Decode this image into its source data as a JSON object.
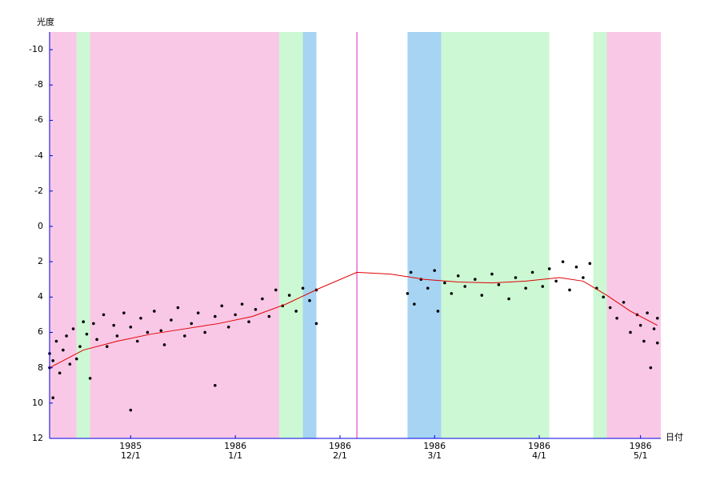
{
  "chart_data": {
    "type": "scatter",
    "y_label": "光度",
    "x_label": "日付",
    "xlim": [
      "1985-11-07",
      "1986-05-07"
    ],
    "xticks": [
      {
        "value": "1985-12-01",
        "label": "1985\n12/1"
      },
      {
        "value": "1986-01-01",
        "label": "1986\n1/1"
      },
      {
        "value": "1986-02-01",
        "label": "1986\n2/1"
      },
      {
        "value": "1986-03-01",
        "label": "1986\n3/1"
      },
      {
        "value": "1986-04-01",
        "label": "1986\n4/1"
      },
      {
        "value": "1986-05-01",
        "label": "1986\n5/1"
      }
    ],
    "ylim": [
      12,
      -11
    ],
    "yticks": [
      -10,
      -8,
      -6,
      -4,
      -2,
      0,
      2,
      4,
      6,
      8,
      10,
      12
    ],
    "axis_color": "#0000e0",
    "bands": [
      {
        "start": "1985-11-07",
        "end": "1985-11-15",
        "color": "#f9c8e6"
      },
      {
        "start": "1985-11-15",
        "end": "1985-11-19",
        "color": "#ccf8d4"
      },
      {
        "start": "1985-11-19",
        "end": "1986-01-14",
        "color": "#f9c8e6"
      },
      {
        "start": "1986-01-14",
        "end": "1986-01-21",
        "color": "#ccf8d4"
      },
      {
        "start": "1986-01-21",
        "end": "1986-01-25",
        "color": "#a6d4f2"
      },
      {
        "start": "1986-02-21",
        "end": "1986-03-03",
        "color": "#a6d4f2"
      },
      {
        "start": "1986-03-03",
        "end": "1986-04-04",
        "color": "#ccf8d4"
      },
      {
        "start": "1986-04-17",
        "end": "1986-04-21",
        "color": "#ccf8d4"
      },
      {
        "start": "1986-04-21",
        "end": "1986-05-07",
        "color": "#f9c8e6"
      }
    ],
    "marker": {
      "x": "1986-02-06",
      "color": "#e020c0"
    },
    "series": [
      {
        "type": "scatter",
        "color": "#000000",
        "x": [
          "1985-11-07",
          "1985-11-07",
          "1985-11-08",
          "1985-11-08",
          "1985-11-09",
          "1985-11-10",
          "1985-11-11",
          "1985-11-12",
          "1985-11-13",
          "1985-11-14",
          "1985-11-15",
          "1985-11-16",
          "1985-11-17",
          "1985-11-18",
          "1985-11-19",
          "1985-11-20",
          "1985-11-21",
          "1985-11-23",
          "1985-11-24",
          "1985-11-26",
          "1985-11-27",
          "1985-11-29",
          "1985-12-01",
          "1985-12-01",
          "1985-12-03",
          "1985-12-04",
          "1985-12-06",
          "1985-12-08",
          "1985-12-10",
          "1985-12-11",
          "1985-12-13",
          "1985-12-15",
          "1985-12-17",
          "1985-12-19",
          "1985-12-21",
          "1985-12-23",
          "1985-12-26",
          "1985-12-26",
          "1985-12-28",
          "1985-12-30",
          "1986-01-01",
          "1986-01-03",
          "1986-01-05",
          "1986-01-07",
          "1986-01-09",
          "1986-01-11",
          "1986-01-13",
          "1986-01-15",
          "1986-01-17",
          "1986-01-19",
          "1986-01-21",
          "1986-01-23",
          "1986-01-25",
          "1986-01-25",
          "1986-02-21",
          "1986-02-22",
          "1986-02-23",
          "1986-02-25",
          "1986-02-27",
          "1986-03-01",
          "1986-03-02",
          "1986-03-04",
          "1986-03-06",
          "1986-03-08",
          "1986-03-10",
          "1986-03-13",
          "1986-03-15",
          "1986-03-18",
          "1986-03-20",
          "1986-03-23",
          "1986-03-25",
          "1986-03-28",
          "1986-03-30",
          "1986-04-02",
          "1986-04-04",
          "1986-04-06",
          "1986-04-08",
          "1986-04-10",
          "1986-04-12",
          "1986-04-14",
          "1986-04-16",
          "1986-04-18",
          "1986-04-20",
          "1986-04-22",
          "1986-04-24",
          "1986-04-26",
          "1986-04-28",
          "1986-04-30",
          "1986-05-01",
          "1986-05-02",
          "1986-05-03",
          "1986-05-04",
          "1986-05-05",
          "1986-05-06",
          "1986-05-06"
        ],
        "values": [
          8.0,
          7.2,
          9.7,
          7.6,
          6.5,
          8.3,
          7.0,
          6.2,
          7.8,
          5.8,
          7.5,
          6.8,
          5.4,
          6.1,
          8.6,
          5.5,
          6.4,
          5.0,
          6.8,
          5.6,
          6.2,
          4.9,
          10.4,
          5.7,
          6.5,
          5.2,
          6.0,
          4.8,
          5.9,
          6.7,
          5.3,
          4.6,
          6.2,
          5.5,
          4.9,
          6.0,
          9.0,
          5.1,
          4.5,
          5.7,
          5.0,
          4.4,
          5.4,
          4.7,
          4.1,
          5.1,
          3.6,
          4.5,
          3.9,
          4.8,
          3.5,
          4.2,
          3.6,
          5.5,
          3.8,
          2.6,
          4.4,
          3.0,
          3.5,
          2.5,
          4.8,
          3.2,
          3.8,
          2.8,
          3.4,
          3.0,
          3.9,
          2.7,
          3.3,
          4.1,
          2.9,
          3.5,
          2.6,
          3.4,
          2.4,
          3.1,
          2.0,
          3.6,
          2.3,
          2.9,
          2.1,
          3.5,
          4.0,
          4.6,
          5.2,
          4.3,
          6.0,
          5.0,
          5.6,
          6.5,
          4.9,
          8.0,
          5.8,
          5.2,
          6.6
        ]
      },
      {
        "type": "line",
        "color": "#e00000",
        "x": [
          "1985-11-07",
          "1985-11-17",
          "1985-11-27",
          "1985-12-07",
          "1985-12-17",
          "1985-12-27",
          "1986-01-06",
          "1986-01-16",
          "1986-01-26",
          "1986-02-06",
          "1986-02-16",
          "1986-02-26",
          "1986-03-08",
          "1986-03-18",
          "1986-03-28",
          "1986-04-07",
          "1986-04-14",
          "1986-04-21",
          "1986-04-28",
          "1986-05-06"
        ],
        "values": [
          8.0,
          7.0,
          6.5,
          6.1,
          5.8,
          5.5,
          5.1,
          4.4,
          3.5,
          2.6,
          2.7,
          3.0,
          3.15,
          3.2,
          3.1,
          2.9,
          3.1,
          3.9,
          4.8,
          5.6
        ]
      }
    ]
  }
}
